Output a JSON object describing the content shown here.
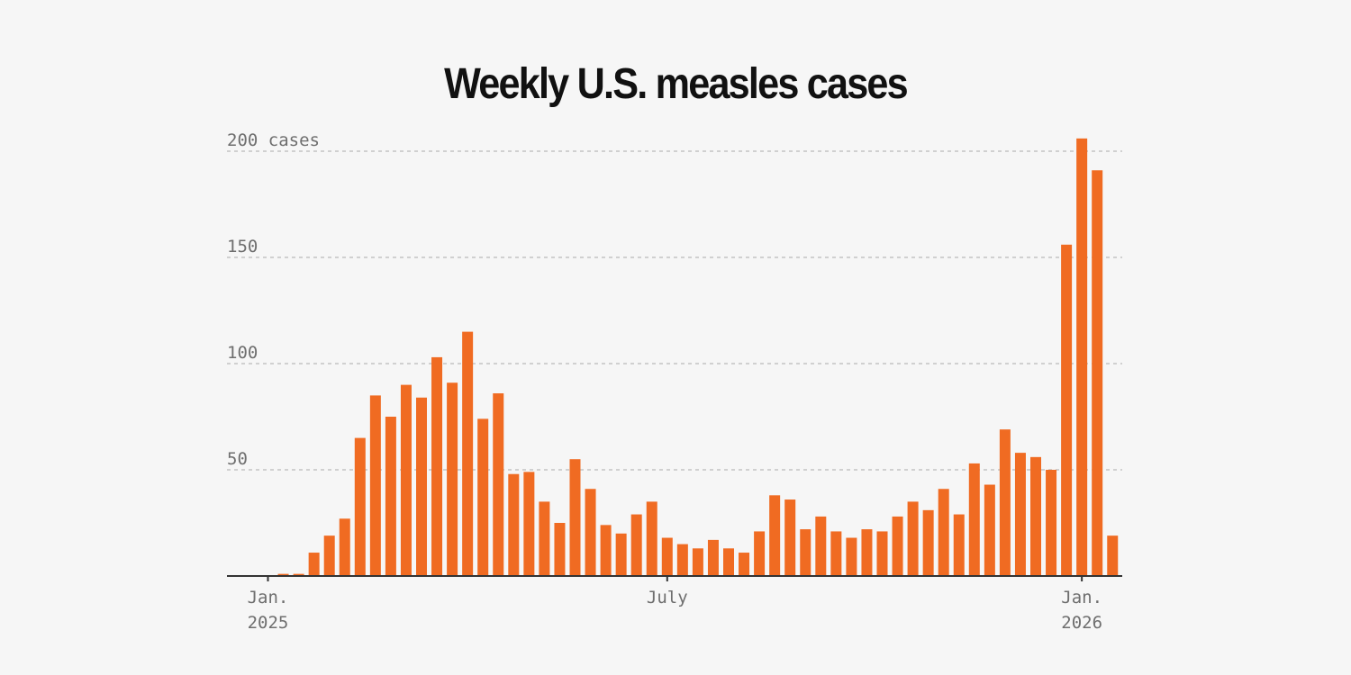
{
  "chart_data": {
    "type": "bar",
    "title": "Weekly U.S. measles cases",
    "ylabel_unit": "cases",
    "ylim": [
      0,
      200
    ],
    "yticks": [
      50,
      100,
      150,
      200
    ],
    "grid": true,
    "bar_color": "#f06b22",
    "x_ticks": [
      {
        "line1": "Jan.",
        "line2": "2025",
        "week": 0
      },
      {
        "line1": "July",
        "line2": "",
        "week": 26
      },
      {
        "line1": "Jan.",
        "line2": "2026",
        "week": 53
      }
    ],
    "series": [
      {
        "values": [
          0,
          1,
          1,
          11,
          19,
          27,
          65,
          85,
          75,
          90,
          84,
          103,
          91,
          115,
          74,
          86,
          48,
          49,
          35,
          25,
          55,
          41,
          24,
          20,
          29,
          35,
          18,
          15,
          13,
          17,
          13,
          11,
          21,
          38,
          36,
          22,
          28,
          21,
          18,
          22,
          21,
          28,
          35,
          31,
          41,
          29,
          53,
          43,
          69,
          58,
          56,
          50,
          156,
          206,
          191,
          19
        ]
      }
    ]
  }
}
